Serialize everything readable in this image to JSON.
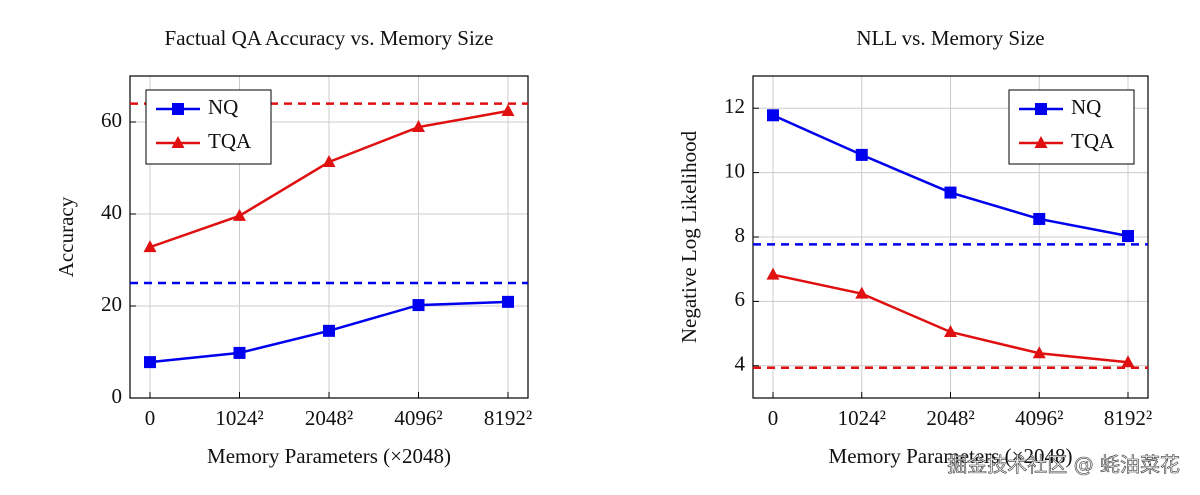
{
  "chart_data": [
    {
      "type": "line",
      "title": "Factual QA Accuracy vs. Memory Size",
      "x_label": "Memory Parameters (×2048)",
      "y_label": "Accuracy",
      "categories": [
        "0",
        "1024²",
        "2048²",
        "4096²",
        "8192²"
      ],
      "ylim": [
        0,
        70
      ],
      "yticks": [
        0,
        20,
        40,
        60
      ],
      "grid": true,
      "legend": "top-left",
      "series": [
        {
          "name": "NQ",
          "color": "#0000ee",
          "marker": "square",
          "values": [
            7.8,
            9.8,
            14.6,
            20.2,
            20.9
          ],
          "reference": 25
        },
        {
          "name": "TQA",
          "color": "#e01010",
          "marker": "triangle",
          "values": [
            32.8,
            39.6,
            51.3,
            58.9,
            62.4
          ],
          "reference": 64
        }
      ]
    },
    {
      "type": "line",
      "title": "NLL vs. Memory Size",
      "x_label": "Memory Parameters (×2048)",
      "y_label": "Negative Log Likelihood",
      "categories": [
        "0",
        "1024²",
        "2048²",
        "4096²",
        "8192²"
      ],
      "ylim": [
        3,
        13
      ],
      "yticks": [
        4,
        6,
        8,
        10,
        12
      ],
      "grid": true,
      "legend": "top-right",
      "series": [
        {
          "name": "NQ",
          "color": "#0000ee",
          "marker": "square",
          "values": [
            11.78,
            10.55,
            9.38,
            8.56,
            8.03
          ],
          "reference": 7.77
        },
        {
          "name": "TQA",
          "color": "#e01010",
          "marker": "triangle",
          "values": [
            6.83,
            6.24,
            5.05,
            4.39,
            4.11
          ],
          "reference": 3.94
        }
      ]
    }
  ],
  "watermark": "掘金技术社区 @ 蚝油菜花"
}
